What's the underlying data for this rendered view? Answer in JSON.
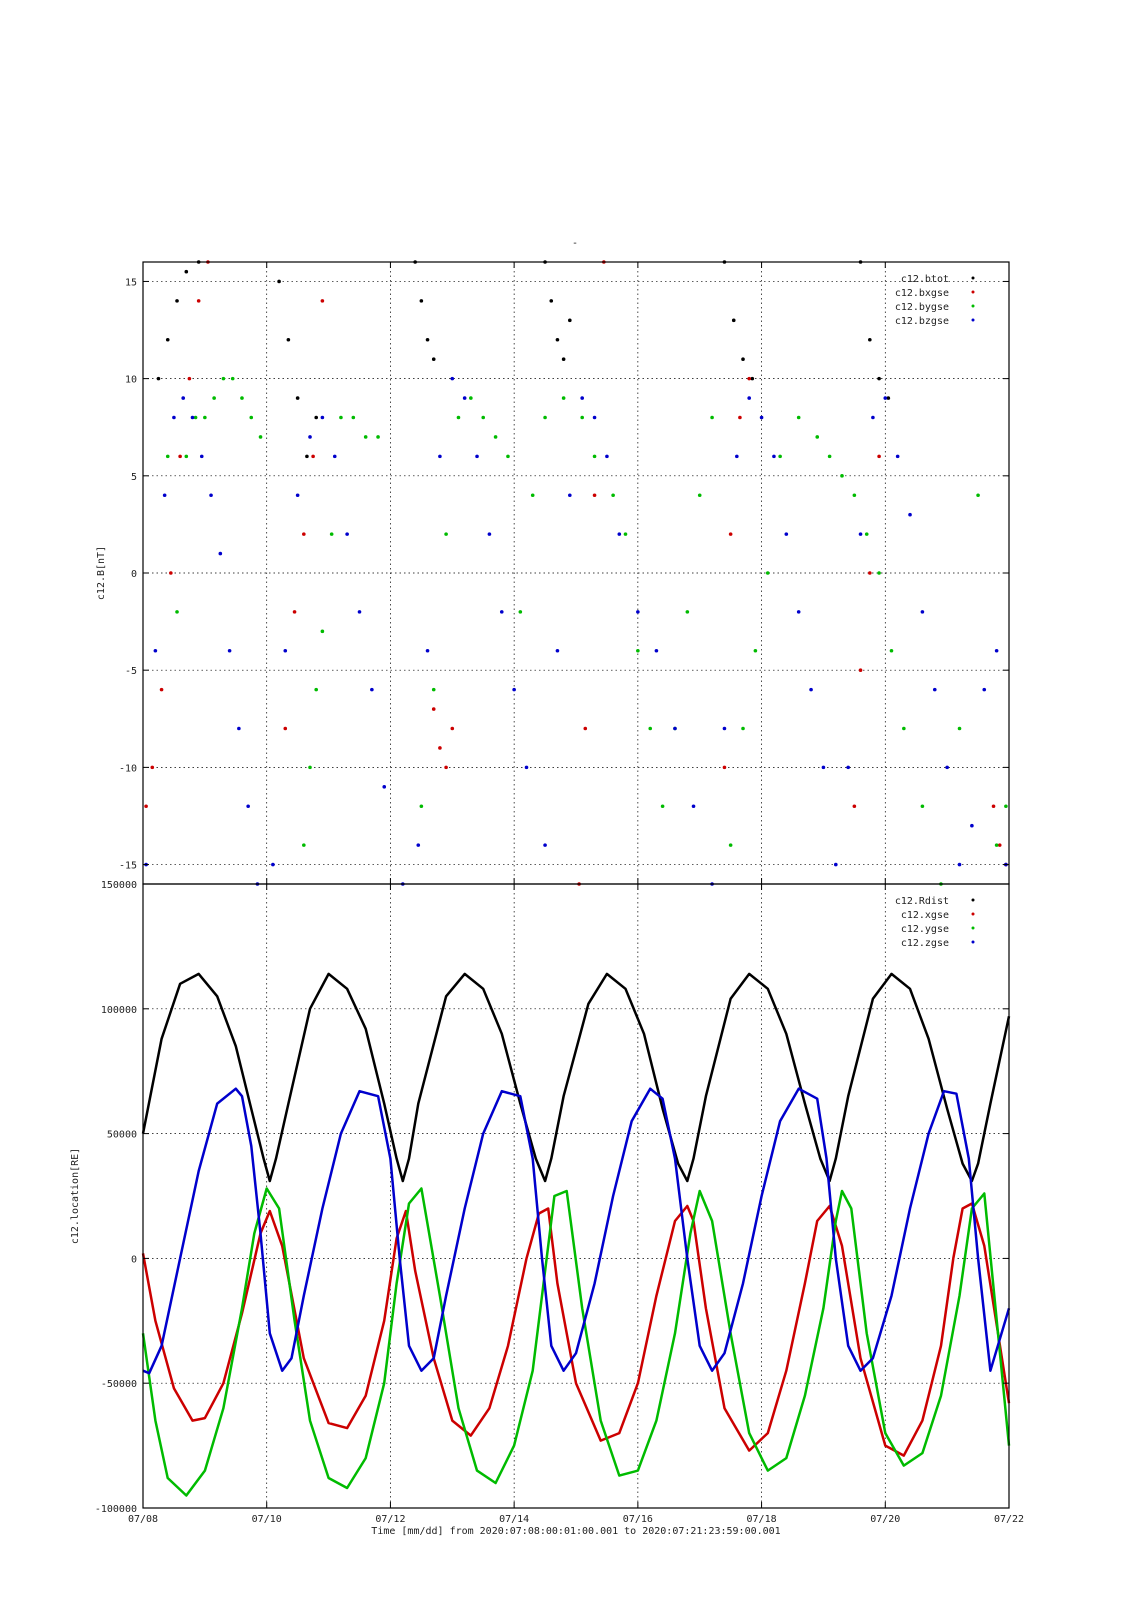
{
  "title_mark": "-",
  "xlabel": "Time [mm/dd]  from 2020:07:08:00:01:00.001  to  2020:07:21:23:59:00.001",
  "x_ticks": [
    "07/08",
    "07/10",
    "07/12",
    "07/14",
    "07/16",
    "07/18",
    "07/20",
    "07/22"
  ],
  "chart_data": [
    {
      "type": "scatter",
      "ylabel": "c12.B[nT]",
      "xlim": [
        0,
        14
      ],
      "ylim": [
        -16,
        16
      ],
      "y_ticks": [
        15,
        10,
        5,
        0,
        -5,
        -10,
        -15
      ],
      "grid": true,
      "legend_placement": "top-right",
      "series": [
        {
          "name": "c12.btot",
          "color": "#000000",
          "x": [
            0.25,
            0.4,
            0.55,
            0.7,
            0.9,
            2.2,
            2.35,
            2.5,
            2.65,
            2.8,
            4.4,
            4.5,
            4.6,
            4.7,
            6.5,
            6.6,
            6.7,
            6.8,
            6.9,
            9.4,
            9.55,
            9.7,
            9.85,
            11.6,
            11.75,
            11.9,
            12.05
          ],
          "y": [
            10,
            12,
            14,
            15.5,
            16,
            15,
            12,
            9,
            6,
            8,
            16,
            14,
            12,
            11,
            16,
            14,
            12,
            11,
            13,
            16,
            13,
            11,
            10,
            16,
            12,
            10,
            9
          ]
        },
        {
          "name": "c12.bxgse",
          "color": "#cc0000",
          "x": [
            0.05,
            0.15,
            0.3,
            0.45,
            0.6,
            0.75,
            0.9,
            1.05,
            2.3,
            2.45,
            2.6,
            2.75,
            2.9,
            4.7,
            4.8,
            4.9,
            5.0,
            7.05,
            7.15,
            7.3,
            7.45,
            9.4,
            9.5,
            9.65,
            9.8,
            11.5,
            11.6,
            11.75,
            11.9,
            13.75,
            13.85,
            13.95
          ],
          "y": [
            -12,
            -10,
            -6,
            0,
            6,
            10,
            14,
            16,
            -8,
            -2,
            2,
            6,
            14,
            -7,
            -9,
            -10,
            -8,
            -16,
            -8,
            4,
            16,
            -10,
            2,
            8,
            10,
            -12,
            -5,
            0,
            6,
            -12,
            -14,
            -15
          ]
        },
        {
          "name": "c12.bygse",
          "color": "#00bb00",
          "x": [
            0.4,
            0.55,
            0.7,
            0.85,
            1.0,
            1.15,
            1.3,
            1.45,
            1.6,
            1.75,
            1.9,
            2.6,
            2.7,
            2.8,
            2.9,
            3.05,
            3.2,
            3.4,
            3.6,
            3.8,
            4.5,
            4.7,
            4.9,
            5.1,
            5.3,
            5.5,
            5.7,
            5.9,
            6.1,
            6.3,
            6.5,
            6.8,
            7.1,
            7.3,
            7.6,
            7.8,
            8.0,
            8.2,
            8.4,
            8.6,
            8.8,
            9.0,
            9.2,
            9.5,
            9.7,
            9.9,
            10.1,
            10.3,
            10.6,
            10.9,
            11.1,
            11.3,
            11.5,
            11.7,
            11.9,
            12.1,
            12.3,
            12.6,
            12.9,
            13.2,
            13.5,
            13.8,
            13.95
          ],
          "y": [
            6,
            -2,
            6,
            8,
            8,
            9,
            10,
            10,
            9,
            8,
            7,
            -14,
            -10,
            -6,
            -3,
            2,
            8,
            8,
            7,
            7,
            -12,
            -6,
            2,
            8,
            9,
            8,
            7,
            6,
            -2,
            4,
            8,
            9,
            8,
            6,
            4,
            2,
            -4,
            -8,
            -12,
            -8,
            -2,
            4,
            8,
            -14,
            -8,
            -4,
            0,
            6,
            8,
            7,
            6,
            5,
            4,
            2,
            0,
            -4,
            -8,
            -12,
            -16,
            -8,
            4,
            -14,
            -12
          ]
        },
        {
          "name": "c12.bzgse",
          "color": "#0000cc",
          "x": [
            0.05,
            0.2,
            0.35,
            0.5,
            0.65,
            0.8,
            0.95,
            1.1,
            1.25,
            1.4,
            1.55,
            1.7,
            1.85,
            2.1,
            2.3,
            2.5,
            2.7,
            2.9,
            3.1,
            3.3,
            3.5,
            3.7,
            3.9,
            4.2,
            4.45,
            4.6,
            4.8,
            5.0,
            5.2,
            5.4,
            5.6,
            5.8,
            6.0,
            6.2,
            6.5,
            6.7,
            6.9,
            7.1,
            7.3,
            7.5,
            7.7,
            8.0,
            8.3,
            8.6,
            8.9,
            9.2,
            9.4,
            9.6,
            9.8,
            10.0,
            10.2,
            10.4,
            10.6,
            10.8,
            11.0,
            11.2,
            11.4,
            11.6,
            11.8,
            12.0,
            12.2,
            12.4,
            12.6,
            12.8,
            13.0,
            13.2,
            13.4,
            13.6,
            13.8,
            13.95
          ],
          "y": [
            -15,
            -4,
            4,
            8,
            9,
            8,
            6,
            4,
            1,
            -4,
            -8,
            -12,
            -16,
            -15,
            -4,
            4,
            7,
            8,
            6,
            2,
            -2,
            -6,
            -11,
            -16,
            -14,
            -4,
            6,
            10,
            9,
            6,
            2,
            -2,
            -6,
            -10,
            -14,
            -4,
            4,
            9,
            8,
            6,
            2,
            -2,
            -4,
            -8,
            -12,
            -16,
            -8,
            6,
            9,
            8,
            6,
            2,
            -2,
            -6,
            -10,
            -15,
            -10,
            2,
            8,
            9,
            6,
            3,
            -2,
            -6,
            -10,
            -15,
            -13,
            -6,
            -4,
            -15
          ]
        }
      ]
    },
    {
      "type": "line",
      "ylabel": "c12.location[RE]",
      "xlim": [
        0,
        14
      ],
      "ylim": [
        -100000,
        150000
      ],
      "y_ticks": [
        150000,
        100000,
        50000,
        0,
        -50000,
        -100000
      ],
      "y_tick_labels": [
        "150000",
        "100000",
        "50000",
        "0",
        "-50000",
        "-100000"
      ],
      "grid": true,
      "legend_placement": "top-right",
      "orbit_period_days": 2.3,
      "series": [
        {
          "name": "c12.Rdist",
          "color": "#000000",
          "x": [
            0.0,
            0.3,
            0.6,
            0.9,
            1.2,
            1.5,
            1.8,
            1.95,
            2.05,
            2.15,
            2.35,
            2.7,
            3.0,
            3.3,
            3.6,
            3.9,
            4.1,
            4.2,
            4.3,
            4.45,
            4.9,
            5.2,
            5.5,
            5.8,
            6.1,
            6.35,
            6.5,
            6.6,
            6.8,
            7.2,
            7.5,
            7.8,
            8.1,
            8.4,
            8.65,
            8.8,
            8.9,
            9.1,
            9.5,
            9.8,
            10.1,
            10.4,
            10.7,
            10.95,
            11.1,
            11.2,
            11.4,
            11.8,
            12.1,
            12.4,
            12.7,
            13.0,
            13.25,
            13.4,
            13.5,
            13.7,
            14.0
          ],
          "y": [
            50000,
            88000,
            110000,
            114000,
            105000,
            85000,
            55000,
            40000,
            31000,
            40000,
            62000,
            100000,
            114000,
            108000,
            92000,
            62000,
            40000,
            31000,
            40000,
            62000,
            105000,
            114000,
            108000,
            90000,
            62000,
            40000,
            31000,
            40000,
            65000,
            102000,
            114000,
            108000,
            90000,
            60000,
            38000,
            31000,
            40000,
            65000,
            104000,
            114000,
            108000,
            90000,
            62000,
            40000,
            31000,
            40000,
            65000,
            104000,
            114000,
            108000,
            88000,
            60000,
            38000,
            31000,
            38000,
            62000,
            97000
          ]
        },
        {
          "name": "c12.xgse",
          "color": "#cc0000",
          "x": [
            0.0,
            0.2,
            0.5,
            0.8,
            1.0,
            1.3,
            1.6,
            1.9,
            2.05,
            2.25,
            2.6,
            3.0,
            3.3,
            3.6,
            3.9,
            4.1,
            4.25,
            4.4,
            4.7,
            5.0,
            5.3,
            5.6,
            5.9,
            6.2,
            6.4,
            6.55,
            6.7,
            7.0,
            7.4,
            7.7,
            8.0,
            8.3,
            8.6,
            8.8,
            8.9,
            9.1,
            9.4,
            9.8,
            10.1,
            10.4,
            10.7,
            10.9,
            11.1,
            11.3,
            11.6,
            12.0,
            12.3,
            12.6,
            12.9,
            13.1,
            13.25,
            13.4,
            13.6,
            14.0
          ],
          "y": [
            2000,
            -25000,
            -52000,
            -65000,
            -64000,
            -50000,
            -22000,
            10000,
            19000,
            5000,
            -40000,
            -66000,
            -68000,
            -55000,
            -25000,
            8000,
            19000,
            -5000,
            -40000,
            -65000,
            -71000,
            -60000,
            -35000,
            0,
            18000,
            20000,
            -10000,
            -50000,
            -73000,
            -70000,
            -50000,
            -15000,
            15000,
            21000,
            15000,
            -20000,
            -60000,
            -77000,
            -70000,
            -45000,
            -10000,
            15000,
            21000,
            5000,
            -40000,
            -75000,
            -79000,
            -65000,
            -35000,
            0,
            20000,
            22000,
            5000,
            -58000
          ]
        },
        {
          "name": "c12.ygse",
          "color": "#00bb00",
          "x": [
            0.0,
            0.2,
            0.4,
            0.7,
            1.0,
            1.3,
            1.6,
            1.8,
            2.0,
            2.2,
            2.45,
            2.7,
            3.0,
            3.3,
            3.6,
            3.9,
            4.1,
            4.3,
            4.5,
            4.8,
            5.1,
            5.4,
            5.7,
            6.0,
            6.3,
            6.5,
            6.65,
            6.85,
            7.1,
            7.4,
            7.7,
            8.0,
            8.3,
            8.6,
            8.85,
            9.0,
            9.2,
            9.5,
            9.8,
            10.1,
            10.4,
            10.7,
            11.0,
            11.2,
            11.3,
            11.45,
            11.7,
            12.0,
            12.3,
            12.6,
            12.9,
            13.2,
            13.4,
            13.6,
            14.0
          ],
          "y": [
            -30000,
            -65000,
            -88000,
            -95000,
            -85000,
            -60000,
            -20000,
            10000,
            28000,
            20000,
            -25000,
            -65000,
            -88000,
            -92000,
            -80000,
            -50000,
            -10000,
            22000,
            28000,
            -15000,
            -60000,
            -85000,
            -90000,
            -75000,
            -45000,
            -5000,
            25000,
            27000,
            -20000,
            -65000,
            -87000,
            -85000,
            -65000,
            -30000,
            10000,
            27000,
            15000,
            -30000,
            -70000,
            -85000,
            -80000,
            -55000,
            -20000,
            15000,
            27000,
            20000,
            -30000,
            -70000,
            -83000,
            -78000,
            -55000,
            -15000,
            20000,
            26000,
            -75000
          ]
        },
        {
          "name": "c12.zgse",
          "color": "#0000cc",
          "x": [
            0.0,
            0.1,
            0.3,
            0.6,
            0.9,
            1.2,
            1.5,
            1.6,
            1.75,
            1.9,
            2.05,
            2.25,
            2.4,
            2.6,
            2.9,
            3.2,
            3.5,
            3.8,
            4.0,
            4.15,
            4.3,
            4.5,
            4.7,
            4.9,
            5.2,
            5.5,
            5.8,
            6.1,
            6.3,
            6.45,
            6.6,
            6.8,
            7.0,
            7.3,
            7.6,
            7.9,
            8.2,
            8.4,
            8.6,
            8.8,
            9.0,
            9.2,
            9.4,
            9.7,
            10.0,
            10.3,
            10.6,
            10.9,
            11.05,
            11.2,
            11.4,
            11.6,
            11.8,
            12.1,
            12.4,
            12.7,
            12.95,
            13.15,
            13.35,
            13.5,
            13.7,
            14.0
          ],
          "y": [
            -45000,
            -46000,
            -35000,
            0,
            35000,
            62000,
            68000,
            65000,
            45000,
            10000,
            -30000,
            -45000,
            -40000,
            -15000,
            20000,
            50000,
            67000,
            65000,
            40000,
            0,
            -35000,
            -45000,
            -40000,
            -15000,
            20000,
            50000,
            67000,
            65000,
            40000,
            0,
            -35000,
            -45000,
            -38000,
            -10000,
            25000,
            55000,
            68000,
            64000,
            40000,
            0,
            -35000,
            -45000,
            -38000,
            -10000,
            25000,
            55000,
            68000,
            64000,
            40000,
            0,
            -35000,
            -45000,
            -40000,
            -15000,
            20000,
            50000,
            67000,
            66000,
            40000,
            0,
            -45000,
            -20000
          ]
        }
      ]
    }
  ]
}
